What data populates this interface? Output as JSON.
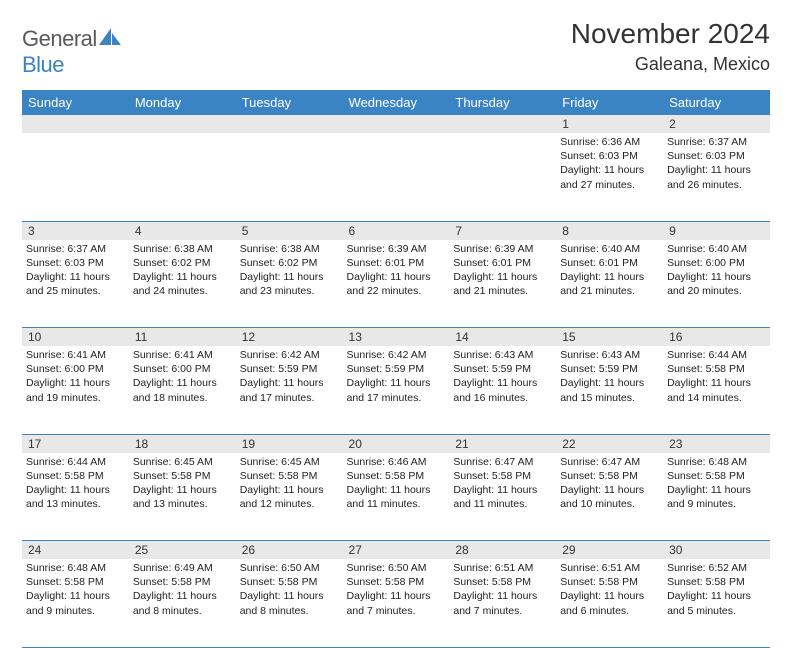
{
  "brand": {
    "part1": "General",
    "part2": "Blue"
  },
  "title": "November 2024",
  "location": "Galeana, Mexico",
  "colors": {
    "header_bg": "#3b84c4",
    "header_text": "#ffffff",
    "daynum_bg": "#e8e8e8",
    "border": "#3b84c4",
    "text": "#222222",
    "brand_gray": "#595959",
    "brand_blue": "#3b84c4"
  },
  "weekdays": [
    "Sunday",
    "Monday",
    "Tuesday",
    "Wednesday",
    "Thursday",
    "Friday",
    "Saturday"
  ],
  "weeks": [
    {
      "nums": [
        "",
        "",
        "",
        "",
        "",
        "1",
        "2"
      ],
      "cells": [
        null,
        null,
        null,
        null,
        null,
        {
          "sunrise": "Sunrise: 6:36 AM",
          "sunset": "Sunset: 6:03 PM",
          "day1": "Daylight: 11 hours",
          "day2": "and 27 minutes."
        },
        {
          "sunrise": "Sunrise: 6:37 AM",
          "sunset": "Sunset: 6:03 PM",
          "day1": "Daylight: 11 hours",
          "day2": "and 26 minutes."
        }
      ]
    },
    {
      "nums": [
        "3",
        "4",
        "5",
        "6",
        "7",
        "8",
        "9"
      ],
      "cells": [
        {
          "sunrise": "Sunrise: 6:37 AM",
          "sunset": "Sunset: 6:03 PM",
          "day1": "Daylight: 11 hours",
          "day2": "and 25 minutes."
        },
        {
          "sunrise": "Sunrise: 6:38 AM",
          "sunset": "Sunset: 6:02 PM",
          "day1": "Daylight: 11 hours",
          "day2": "and 24 minutes."
        },
        {
          "sunrise": "Sunrise: 6:38 AM",
          "sunset": "Sunset: 6:02 PM",
          "day1": "Daylight: 11 hours",
          "day2": "and 23 minutes."
        },
        {
          "sunrise": "Sunrise: 6:39 AM",
          "sunset": "Sunset: 6:01 PM",
          "day1": "Daylight: 11 hours",
          "day2": "and 22 minutes."
        },
        {
          "sunrise": "Sunrise: 6:39 AM",
          "sunset": "Sunset: 6:01 PM",
          "day1": "Daylight: 11 hours",
          "day2": "and 21 minutes."
        },
        {
          "sunrise": "Sunrise: 6:40 AM",
          "sunset": "Sunset: 6:01 PM",
          "day1": "Daylight: 11 hours",
          "day2": "and 21 minutes."
        },
        {
          "sunrise": "Sunrise: 6:40 AM",
          "sunset": "Sunset: 6:00 PM",
          "day1": "Daylight: 11 hours",
          "day2": "and 20 minutes."
        }
      ]
    },
    {
      "nums": [
        "10",
        "11",
        "12",
        "13",
        "14",
        "15",
        "16"
      ],
      "cells": [
        {
          "sunrise": "Sunrise: 6:41 AM",
          "sunset": "Sunset: 6:00 PM",
          "day1": "Daylight: 11 hours",
          "day2": "and 19 minutes."
        },
        {
          "sunrise": "Sunrise: 6:41 AM",
          "sunset": "Sunset: 6:00 PM",
          "day1": "Daylight: 11 hours",
          "day2": "and 18 minutes."
        },
        {
          "sunrise": "Sunrise: 6:42 AM",
          "sunset": "Sunset: 5:59 PM",
          "day1": "Daylight: 11 hours",
          "day2": "and 17 minutes."
        },
        {
          "sunrise": "Sunrise: 6:42 AM",
          "sunset": "Sunset: 5:59 PM",
          "day1": "Daylight: 11 hours",
          "day2": "and 17 minutes."
        },
        {
          "sunrise": "Sunrise: 6:43 AM",
          "sunset": "Sunset: 5:59 PM",
          "day1": "Daylight: 11 hours",
          "day2": "and 16 minutes."
        },
        {
          "sunrise": "Sunrise: 6:43 AM",
          "sunset": "Sunset: 5:59 PM",
          "day1": "Daylight: 11 hours",
          "day2": "and 15 minutes."
        },
        {
          "sunrise": "Sunrise: 6:44 AM",
          "sunset": "Sunset: 5:58 PM",
          "day1": "Daylight: 11 hours",
          "day2": "and 14 minutes."
        }
      ]
    },
    {
      "nums": [
        "17",
        "18",
        "19",
        "20",
        "21",
        "22",
        "23"
      ],
      "cells": [
        {
          "sunrise": "Sunrise: 6:44 AM",
          "sunset": "Sunset: 5:58 PM",
          "day1": "Daylight: 11 hours",
          "day2": "and 13 minutes."
        },
        {
          "sunrise": "Sunrise: 6:45 AM",
          "sunset": "Sunset: 5:58 PM",
          "day1": "Daylight: 11 hours",
          "day2": "and 13 minutes."
        },
        {
          "sunrise": "Sunrise: 6:45 AM",
          "sunset": "Sunset: 5:58 PM",
          "day1": "Daylight: 11 hours",
          "day2": "and 12 minutes."
        },
        {
          "sunrise": "Sunrise: 6:46 AM",
          "sunset": "Sunset: 5:58 PM",
          "day1": "Daylight: 11 hours",
          "day2": "and 11 minutes."
        },
        {
          "sunrise": "Sunrise: 6:47 AM",
          "sunset": "Sunset: 5:58 PM",
          "day1": "Daylight: 11 hours",
          "day2": "and 11 minutes."
        },
        {
          "sunrise": "Sunrise: 6:47 AM",
          "sunset": "Sunset: 5:58 PM",
          "day1": "Daylight: 11 hours",
          "day2": "and 10 minutes."
        },
        {
          "sunrise": "Sunrise: 6:48 AM",
          "sunset": "Sunset: 5:58 PM",
          "day1": "Daylight: 11 hours",
          "day2": "and 9 minutes."
        }
      ]
    },
    {
      "nums": [
        "24",
        "25",
        "26",
        "27",
        "28",
        "29",
        "30"
      ],
      "cells": [
        {
          "sunrise": "Sunrise: 6:48 AM",
          "sunset": "Sunset: 5:58 PM",
          "day1": "Daylight: 11 hours",
          "day2": "and 9 minutes."
        },
        {
          "sunrise": "Sunrise: 6:49 AM",
          "sunset": "Sunset: 5:58 PM",
          "day1": "Daylight: 11 hours",
          "day2": "and 8 minutes."
        },
        {
          "sunrise": "Sunrise: 6:50 AM",
          "sunset": "Sunset: 5:58 PM",
          "day1": "Daylight: 11 hours",
          "day2": "and 8 minutes."
        },
        {
          "sunrise": "Sunrise: 6:50 AM",
          "sunset": "Sunset: 5:58 PM",
          "day1": "Daylight: 11 hours",
          "day2": "and 7 minutes."
        },
        {
          "sunrise": "Sunrise: 6:51 AM",
          "sunset": "Sunset: 5:58 PM",
          "day1": "Daylight: 11 hours",
          "day2": "and 7 minutes."
        },
        {
          "sunrise": "Sunrise: 6:51 AM",
          "sunset": "Sunset: 5:58 PM",
          "day1": "Daylight: 11 hours",
          "day2": "and 6 minutes."
        },
        {
          "sunrise": "Sunrise: 6:52 AM",
          "sunset": "Sunset: 5:58 PM",
          "day1": "Daylight: 11 hours",
          "day2": "and 5 minutes."
        }
      ]
    }
  ]
}
